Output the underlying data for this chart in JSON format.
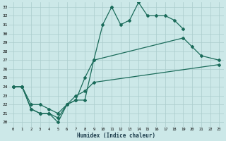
{
  "xlabel": "Humidex (Indice chaleur)",
  "background_color": "#cce8e8",
  "grid_color": "#aacccc",
  "line_color": "#1a6b5a",
  "x_ticks": [
    0,
    1,
    2,
    3,
    4,
    5,
    6,
    7,
    8,
    9,
    10,
    11,
    12,
    13,
    14,
    15,
    16,
    17,
    18,
    19,
    20,
    21,
    22,
    23
  ],
  "y_ticks": [
    20,
    21,
    22,
    23,
    24,
    25,
    26,
    27,
    28,
    29,
    30,
    31,
    32,
    33
  ],
  "xlim": [
    -0.5,
    23.5
  ],
  "ylim": [
    19.5,
    33.5
  ],
  "curve1": {
    "x": [
      0,
      1,
      2,
      3,
      4,
      5,
      6,
      7,
      8,
      9,
      10,
      11,
      12,
      13,
      14,
      15,
      16,
      17,
      18,
      19
    ],
    "y": [
      24,
      24,
      21.5,
      21,
      21,
      20,
      22,
      22.5,
      22.5,
      27,
      31,
      33,
      31,
      31.5,
      33.5,
      32,
      32,
      32,
      31.5,
      30.5
    ]
  },
  "curve2": {
    "x": [
      0,
      1,
      2,
      3,
      4,
      5,
      6,
      7,
      8,
      9,
      19,
      20,
      21,
      23
    ],
    "y": [
      24,
      24,
      21.5,
      21,
      21,
      20.5,
      22,
      22.5,
      25,
      27,
      29.5,
      28.5,
      27.5,
      27
    ]
  },
  "curve3": {
    "x": [
      0,
      1,
      2,
      3,
      4,
      5,
      6,
      7,
      8,
      9,
      23
    ],
    "y": [
      24,
      24,
      22,
      22,
      21.5,
      21,
      22,
      23,
      23.5,
      24.5,
      26.5
    ]
  }
}
